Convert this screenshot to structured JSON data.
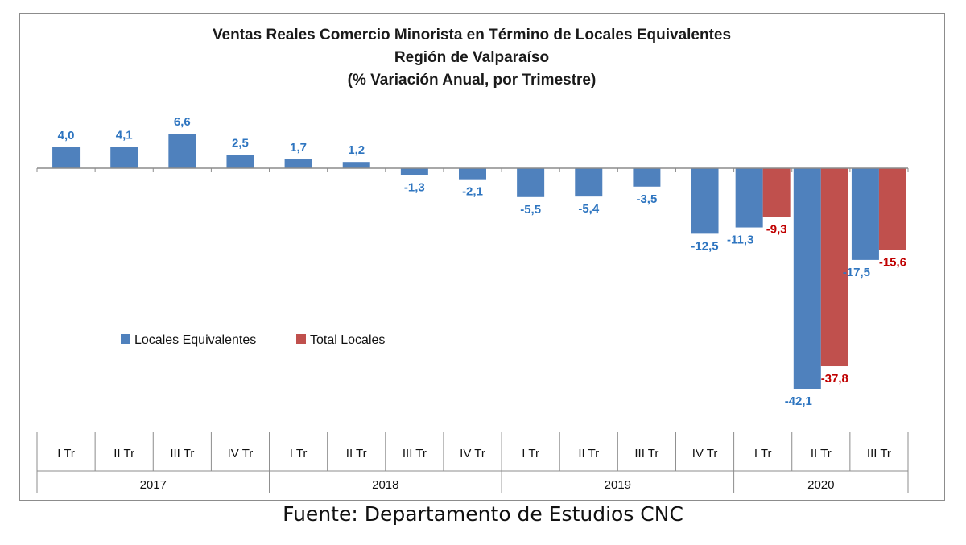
{
  "chart_data": {
    "type": "bar",
    "title": [
      "Ventas Reales Comercio Minorista  en Término de Locales Equivalentes",
      "Región de Valparaíso",
      "(% Variación Anual, por Trimestre)"
    ],
    "categories": [
      "I Tr",
      "II Tr",
      "III Tr",
      "IV Tr",
      "I Tr",
      "II Tr",
      "III Tr",
      "IV Tr",
      "I Tr",
      "II Tr",
      "III Tr",
      "IV Tr",
      "I Tr",
      "II Tr",
      "III Tr"
    ],
    "groups": [
      {
        "label": "2017",
        "span": 4
      },
      {
        "label": "2018",
        "span": 4
      },
      {
        "label": "2019",
        "span": 4
      },
      {
        "label": "2020",
        "span": 3
      }
    ],
    "series": [
      {
        "name": "Locales Equivalentes",
        "color": "#4f81bd",
        "label_color": "#2e75c0",
        "values": [
          4.0,
          4.1,
          6.6,
          2.5,
          1.7,
          1.2,
          -1.3,
          -2.1,
          -5.5,
          -5.4,
          -3.5,
          -12.5,
          -11.3,
          -42.1,
          -17.5
        ],
        "labels": [
          "4,0",
          "4,1",
          "6,6",
          "2,5",
          "1,7",
          "1,2",
          "-1,3",
          "-2,1",
          "-5,5",
          "-5,4",
          "-3,5",
          "-12,5",
          "-11,3",
          "-42,1",
          "-17,5"
        ]
      },
      {
        "name": "Total Locales",
        "color": "#c0504d",
        "label_color": "#c00000",
        "values": [
          null,
          null,
          null,
          null,
          null,
          null,
          null,
          null,
          null,
          null,
          null,
          null,
          -9.3,
          -37.8,
          -15.6
        ],
        "labels": [
          null,
          null,
          null,
          null,
          null,
          null,
          null,
          null,
          null,
          null,
          null,
          null,
          "-9,3",
          "-37,8",
          "-15,6"
        ]
      }
    ],
    "ylim": [
      -42.1,
      6.6
    ],
    "grid": false,
    "legend_position": "left-middle"
  },
  "source_note": "Fuente: Departamento de Estudios CNC"
}
